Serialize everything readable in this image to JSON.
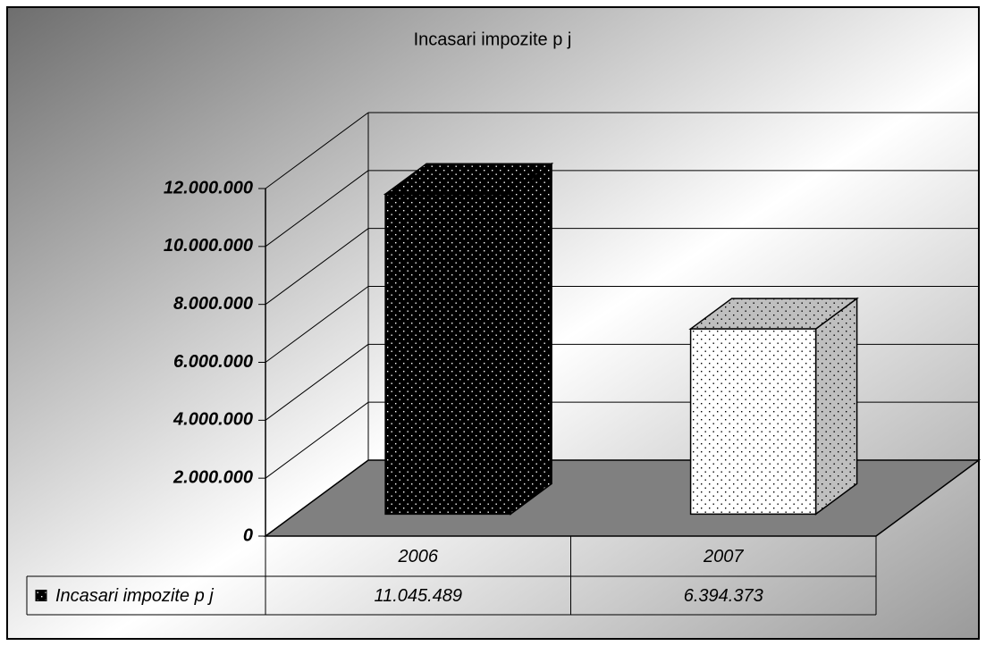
{
  "chart_data": {
    "type": "bar",
    "title": "Incasari impozite p j",
    "categories": [
      "2006",
      "2007"
    ],
    "series": [
      {
        "name": "Incasari impozite p j",
        "colors": [
          "#000000",
          "#ffffff"
        ],
        "values": [
          11045489,
          6394373
        ],
        "value_labels": [
          "11.045.489",
          "6.394.373"
        ]
      }
    ],
    "ylim": [
      0,
      12000000
    ],
    "yticks": [
      0,
      {
        "value": 2000000,
        "label": "2.000.000"
      },
      {
        "value": 4000000,
        "label": "4.000.000"
      },
      {
        "value": 6000000,
        "label": "6.000.000"
      },
      {
        "value": 8000000,
        "label": "8.000.000"
      },
      {
        "value": 10000000,
        "label": "10.000.000"
      },
      {
        "value": 12000000,
        "label": "12.000.000"
      }
    ],
    "grid": true,
    "floor_color": "#808080"
  }
}
